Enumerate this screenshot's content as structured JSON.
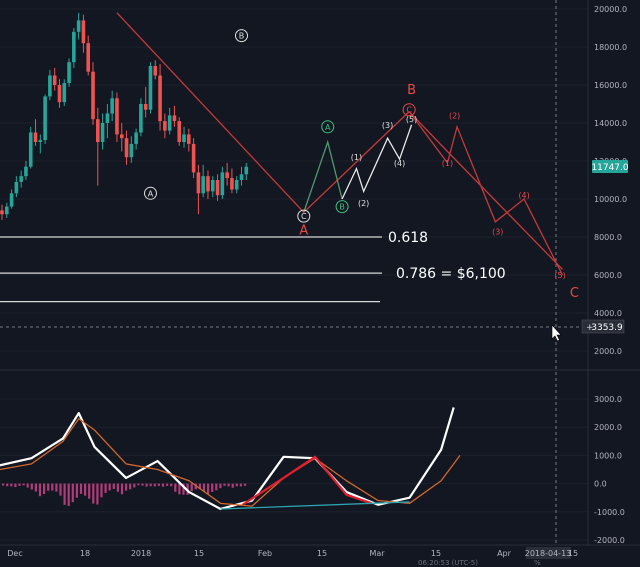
{
  "chart_data": [
    {
      "type": "candlestick",
      "panel": "price",
      "y_axis": {
        "ticks": [
          20000,
          18000,
          16000,
          14000,
          12000,
          10000,
          8000,
          6000,
          4000,
          2000
        ]
      },
      "last_price_label": "11747.0",
      "crosshair_label": "3353.9",
      "candles": [
        [
          9400,
          9700,
          8900,
          9200
        ],
        [
          9200,
          9800,
          9000,
          9600
        ],
        [
          9600,
          10500,
          9500,
          10300
        ],
        [
          10300,
          11200,
          10100,
          10900
        ],
        [
          10900,
          11500,
          10600,
          11200
        ],
        [
          11200,
          12000,
          11000,
          11700
        ],
        [
          11700,
          13800,
          11600,
          13500
        ],
        [
          13500,
          14200,
          12800,
          13000
        ],
        [
          13000,
          13400,
          12400,
          13100
        ],
        [
          13100,
          15500,
          12900,
          15400
        ],
        [
          15400,
          16800,
          15200,
          16500
        ],
        [
          16500,
          16900,
          15700,
          16000
        ],
        [
          16000,
          16300,
          14800,
          15100
        ],
        [
          15100,
          16300,
          14900,
          16100
        ],
        [
          16100,
          17400,
          15900,
          17200
        ],
        [
          17200,
          19000,
          16900,
          18800
        ],
        [
          18800,
          19800,
          18400,
          19400
        ],
        [
          19400,
          19700,
          17700,
          18200
        ],
        [
          18200,
          18600,
          16500,
          16700
        ],
        [
          16700,
          17200,
          13900,
          14200
        ],
        [
          14200,
          14800,
          10700,
          13000
        ],
        [
          13000,
          14500,
          12600,
          14000
        ],
        [
          14000,
          15000,
          13200,
          14500
        ],
        [
          14500,
          15700,
          14100,
          15300
        ],
        [
          15300,
          15600,
          13000,
          13400
        ],
        [
          13400,
          14000,
          12500,
          13200
        ],
        [
          13200,
          13600,
          11800,
          12200
        ],
        [
          12200,
          13300,
          11900,
          12900
        ],
        [
          12900,
          13700,
          12600,
          13500
        ],
        [
          13500,
          15300,
          13300,
          15000
        ],
        [
          15000,
          15900,
          14300,
          14700
        ],
        [
          14700,
          17200,
          14500,
          17000
        ],
        [
          17000,
          17300,
          16300,
          16500
        ],
        [
          16500,
          17100,
          13600,
          14100
        ],
        [
          14100,
          14500,
          13200,
          13600
        ],
        [
          13600,
          14800,
          13400,
          14400
        ],
        [
          14400,
          14900,
          13800,
          14100
        ],
        [
          14100,
          14300,
          12800,
          13000
        ],
        [
          13000,
          13800,
          12700,
          13400
        ],
        [
          13400,
          13700,
          12500,
          12900
        ],
        [
          12900,
          13200,
          11100,
          11400
        ],
        [
          11400,
          11800,
          9200,
          10300
        ],
        [
          10300,
          11800,
          10100,
          11200
        ],
        [
          11200,
          11500,
          10000,
          10400
        ],
        [
          10400,
          11200,
          10100,
          11000
        ],
        [
          11000,
          11300,
          9900,
          10200
        ],
        [
          10200,
          11700,
          10000,
          11400
        ],
        [
          11400,
          11900,
          10700,
          11100
        ],
        [
          11100,
          11600,
          10300,
          10500
        ],
        [
          10500,
          11200,
          10300,
          11000
        ],
        [
          11000,
          11700,
          10700,
          11300
        ],
        [
          11300,
          11900,
          11000,
          11700
        ]
      ],
      "annotations": [
        {
          "text": "A",
          "style": "circle",
          "color": "#e0e0e0",
          "x": 31,
          "y": 10300
        },
        {
          "text": "B",
          "style": "circle",
          "color": "#e0e0e0",
          "x": 50,
          "y": 18600
        },
        {
          "text": "C",
          "style": "circle",
          "color": "#e0e0e0",
          "x": 63,
          "y": 9100
        },
        {
          "text": "A",
          "style": "plain",
          "color": "#e84a4a",
          "x": 63,
          "y": 8400
        },
        {
          "text": "A",
          "style": "circle",
          "color": "#3fbf7f",
          "x": 68,
          "y": 13800
        },
        {
          "text": "B",
          "style": "circle",
          "color": "#3fbf7f",
          "x": 71,
          "y": 9600
        },
        {
          "text": "(1)",
          "style": "plain",
          "color": "#e0e0e0",
          "x": 74,
          "y": 12200
        },
        {
          "text": "(2)",
          "style": "plain",
          "color": "#e0e0e0",
          "x": 75.5,
          "y": 9800
        },
        {
          "text": "(3)",
          "style": "plain",
          "color": "#e0e0e0",
          "x": 80.5,
          "y": 13900
        },
        {
          "text": "(4)",
          "style": "plain",
          "color": "#e0e0e0",
          "x": 83,
          "y": 11900
        },
        {
          "text": "(5)",
          "style": "plain",
          "color": "#e0e0e0",
          "x": 85.5,
          "y": 14200
        },
        {
          "text": "B",
          "style": "plain",
          "color": "#e84a4a",
          "x": 85.5,
          "y": 15800
        },
        {
          "text": "C",
          "style": "circle",
          "color": "#e84a4a",
          "x": 85,
          "y": 14700
        },
        {
          "text": "(1)",
          "style": "plain",
          "color": "#e84a4a",
          "x": 93,
          "y": 11900
        },
        {
          "text": "(2)",
          "style": "plain",
          "color": "#e84a4a",
          "x": 94.5,
          "y": 14400
        },
        {
          "text": "(3)",
          "style": "plain",
          "color": "#e84a4a",
          "x": 103.5,
          "y": 8300
        },
        {
          "text": "(4)",
          "style": "plain",
          "color": "#e84a4a",
          "x": 109,
          "y": 10200
        },
        {
          "text": "(5)",
          "style": "plain",
          "color": "#e84a4a",
          "x": 116.5,
          "y": 6000
        },
        {
          "text": "C",
          "style": "plain",
          "color": "#e84a4a",
          "x": 119.5,
          "y": 5100
        }
      ],
      "fib_levels": [
        {
          "label": "0.618",
          "price": 8000
        },
        {
          "label": "0.786 = $6,100",
          "price": 6100
        },
        {
          "label": "",
          "price": 4600
        }
      ],
      "wave_paths": [
        {
          "color": "#c43a3a",
          "points": [
            [
              24,
              19800
            ],
            [
              63,
              9300
            ],
            [
              85,
              14600
            ]
          ]
        },
        {
          "color": "#c43a3a",
          "points": [
            [
              85,
              14600
            ],
            [
              93,
              11900
            ],
            [
              95,
              13800
            ],
            [
              103,
              8800
            ],
            [
              109,
              10000
            ],
            [
              117,
              6000
            ]
          ]
        },
        {
          "color": "#c43a3a",
          "points": [
            [
              85,
              14600
            ],
            [
              93,
              12500
            ],
            [
              117,
              6300
            ]
          ]
        },
        {
          "color": "#4f9b70",
          "points": [
            [
              63,
              9300
            ],
            [
              68,
              13000
            ],
            [
              71,
              10000
            ]
          ]
        },
        {
          "color": "#e8e8e8",
          "points": [
            [
              71,
              10000
            ],
            [
              74,
              11600
            ],
            [
              75.5,
              10400
            ],
            [
              80.5,
              13200
            ],
            [
              83,
              12100
            ],
            [
              85.5,
              13900
            ]
          ]
        }
      ]
    },
    {
      "type": "line",
      "panel": "macd",
      "y_axis": {
        "ticks": [
          3000,
          2000,
          1000,
          0,
          -1000,
          -2000
        ]
      },
      "series": [
        {
          "color": "#ffffff",
          "points": [
            [
              0,
              650
            ],
            [
              10,
              900
            ],
            [
              20,
              1600
            ],
            [
              25,
              2500
            ],
            [
              30,
              1300
            ],
            [
              40,
              200
            ],
            [
              50,
              800
            ],
            [
              60,
              -300
            ],
            [
              70,
              -900
            ],
            [
              80,
              -600
            ],
            [
              90,
              950
            ],
            [
              100,
              900
            ],
            [
              110,
              -300
            ],
            [
              120,
              -750
            ],
            [
              130,
              -500
            ],
            [
              140,
              1200
            ],
            [
              144,
              2700
            ]
          ]
        },
        {
          "color": "#d2672f",
          "points": [
            [
              0,
              500
            ],
            [
              10,
              700
            ],
            [
              20,
              1500
            ],
            [
              25,
              2300
            ],
            [
              30,
              1900
            ],
            [
              40,
              700
            ],
            [
              50,
              500
            ],
            [
              60,
              100
            ],
            [
              70,
              -700
            ],
            [
              80,
              -800
            ],
            [
              90,
              200
            ],
            [
              100,
              900
            ],
            [
              110,
              100
            ],
            [
              120,
              -600
            ],
            [
              130,
              -700
            ],
            [
              140,
              100
            ],
            [
              146,
              1000
            ]
          ]
        },
        {
          "color": "#e41e2e",
          "points": [
            [
              77,
              -750
            ],
            [
              90,
              200
            ],
            [
              100,
              950
            ],
            [
              110,
              -400
            ],
            [
              118,
              -700
            ]
          ]
        },
        {
          "color": "#2ba4b0",
          "points": [
            [
              70,
              -900
            ],
            [
              130,
              -650
            ]
          ]
        }
      ],
      "histogram": {
        "color": "#b03c7a",
        "values": [
          -100,
          -150,
          -300,
          -450,
          -600,
          -800,
          -900,
          -750,
          -600,
          -400,
          -250,
          -150,
          -100,
          -200,
          -400,
          -500,
          -400,
          -300,
          -200,
          -100
        ]
      }
    }
  ],
  "x_axis": {
    "ticks": [
      "Dec",
      "18",
      "2018",
      "15",
      "Feb",
      "15",
      "Mar",
      "15",
      "Apr",
      "2018-04-13",
      "15"
    ]
  },
  "footer": {
    "timestamp_text": "06:20:53 (UTC-5)",
    "pct_label": "%"
  }
}
